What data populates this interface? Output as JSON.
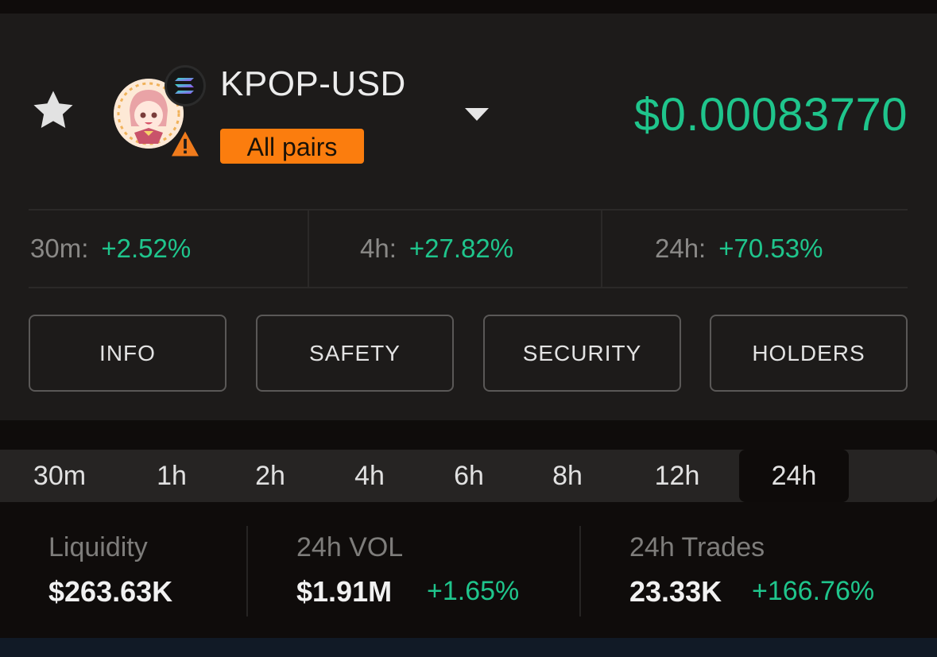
{
  "header": {
    "pair": "KPOP-USD",
    "pairs_button": "All pairs",
    "price": "$0.00083770"
  },
  "changes": [
    {
      "label": "30m:",
      "value": "+2.52%"
    },
    {
      "label": "4h:",
      "value": "+27.82%"
    },
    {
      "label": "24h:",
      "value": "+70.53%"
    }
  ],
  "tabs": [
    {
      "label": "INFO"
    },
    {
      "label": "SAFETY"
    },
    {
      "label": "SECURITY"
    },
    {
      "label": "HOLDERS"
    }
  ],
  "timeframes": [
    "30m",
    "1h",
    "2h",
    "4h",
    "6h",
    "8h",
    "12h",
    "24h"
  ],
  "selected_timeframe": "24h",
  "stats": [
    {
      "label": "Liquidity",
      "value": "$263.63K",
      "change": ""
    },
    {
      "label": "24h VOL",
      "value": "$1.91M",
      "change": "+1.65%"
    },
    {
      "label": "24h Trades",
      "value": "23.33K",
      "change": "+166.76%"
    }
  ],
  "colors": {
    "positive": "#1fc58c",
    "badge": "#fb7d0e",
    "background": "#1d1b1a"
  },
  "icons": [
    "star-icon",
    "token-avatar",
    "solana-chain-icon",
    "warning-icon",
    "chevron-down-icon"
  ]
}
